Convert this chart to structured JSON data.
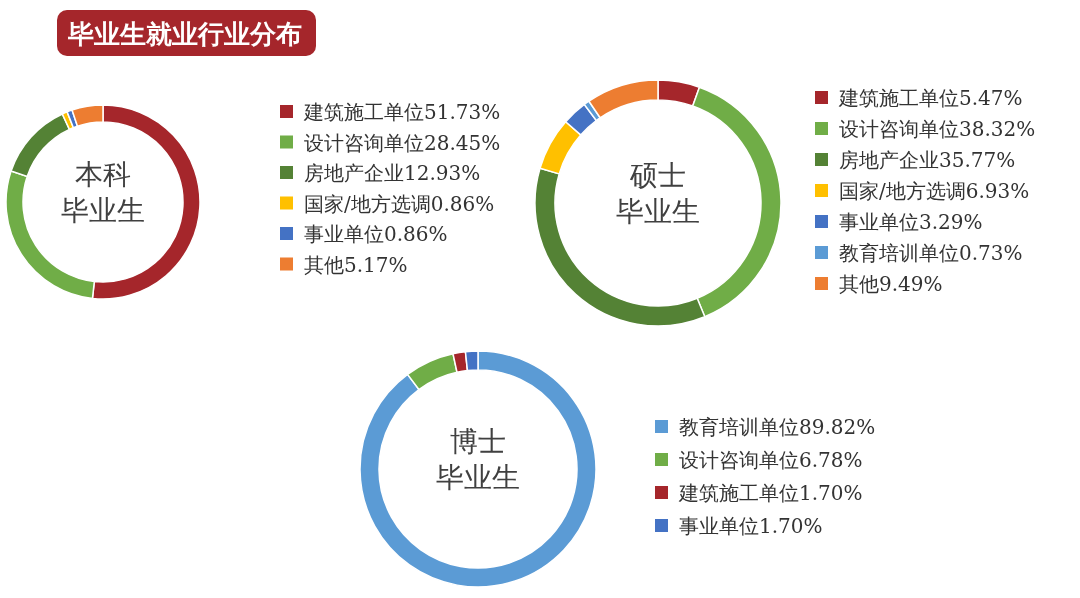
{
  "chart_data": [
    {
      "type": "donut",
      "title": "毕业生就业行业分布",
      "annotations": [
        "本科",
        "毕业生"
      ],
      "categories": [
        "建筑施工单位",
        "设计咨询单位",
        "房地产企业",
        "国家/地方选调",
        "事业单位",
        "其他"
      ],
      "values": [
        51.73,
        28.45,
        12.93,
        0.86,
        0.86,
        5.17
      ],
      "value_labels": [
        "51.73%",
        "28.45%",
        "12.93%",
        "0.86%",
        "0.86%",
        "5.17%"
      ],
      "colors": [
        "#a5262b",
        "#70ad47",
        "#548235",
        "#ffc000",
        "#4472c4",
        "#ed7d31"
      ],
      "legend": "right"
    },
    {
      "type": "donut",
      "annotations": [
        "硕士",
        "毕业生"
      ],
      "categories": [
        "建筑施工单位",
        "设计咨询单位",
        "房地产企业",
        "国家/地方选调",
        "事业单位",
        "教育培训单位",
        "其他"
      ],
      "values": [
        5.47,
        38.32,
        35.77,
        6.93,
        3.29,
        0.73,
        9.49
      ],
      "value_labels": [
        "5.47%",
        "38.32%",
        "35.77%",
        "6.93%",
        "3.29%",
        "0.73%",
        "9.49%"
      ],
      "colors": [
        "#a5262b",
        "#70ad47",
        "#548235",
        "#ffc000",
        "#4472c4",
        "#5b9bd5",
        "#ed7d31"
      ],
      "legend": "right"
    },
    {
      "type": "donut",
      "annotations": [
        "博士",
        "毕业生"
      ],
      "categories": [
        "教育培训单位",
        "设计咨询单位",
        "建筑施工单位",
        "事业单位"
      ],
      "values": [
        89.82,
        6.78,
        1.7,
        1.7
      ],
      "value_labels": [
        "89.82%",
        "6.78%",
        "1.70%",
        "1.70%"
      ],
      "colors": [
        "#5b9bd5",
        "#70ad47",
        "#a5262b",
        "#4472c4"
      ],
      "legend": "right"
    }
  ]
}
